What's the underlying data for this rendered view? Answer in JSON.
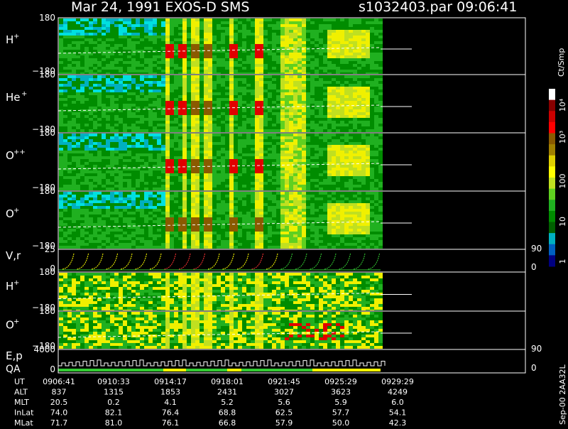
{
  "header": {
    "title": "Mar 24, 1991   EXOS-D SMS",
    "file_time": "s1032403.par  09:06:41"
  },
  "panels": [
    {
      "label": "H",
      "sup": "+",
      "top": "180",
      "bottom": "−180"
    },
    {
      "label": "He",
      "sup": "+",
      "top": "180",
      "bottom": "−180"
    },
    {
      "label": "O",
      "sup": "++",
      "top": "180",
      "bottom": "−180"
    },
    {
      "label": "O",
      "sup": "+",
      "top": "180",
      "bottom": "−180"
    },
    {
      "label": "V,r",
      "top": "25",
      "bottom": "0",
      "right_top": "90",
      "right_bottom": "0"
    },
    {
      "label": "H",
      "sup": "+",
      "top": "180",
      "bottom": "−180"
    },
    {
      "label": "O",
      "sup": "+",
      "top": "180",
      "bottom": "−180"
    },
    {
      "label": "E,p",
      "label2": "QA",
      "top": "4000",
      "bottom": "0",
      "right_top": "90",
      "right_bottom": "0"
    }
  ],
  "table": {
    "rows": [
      [
        "UT",
        "0906:41",
        "0910:33",
        "0914:17",
        "0918:01",
        "0921:45",
        "0925:29",
        "0929:29"
      ],
      [
        "ALT",
        "837",
        "1315",
        "1853",
        "2431",
        "3027",
        "3623",
        "4249"
      ],
      [
        "MLT",
        "20.5",
        "0.2",
        "4.1",
        "5.2",
        "5.6",
        "5.9",
        "6.0"
      ],
      [
        "InLat",
        "74.0",
        "82.1",
        "76.4",
        "68.8",
        "62.5",
        "57.7",
        "54.1"
      ],
      [
        "MLat",
        "71.7",
        "81.0",
        "76.1",
        "66.8",
        "57.9",
        "50.0",
        "42.3"
      ]
    ]
  },
  "colorbar": {
    "unit": "Ct/Smp",
    "labels": [
      "10⁴",
      "10³",
      "100",
      "10",
      "1"
    ]
  },
  "footer": "Sep-00  2AA32L"
}
